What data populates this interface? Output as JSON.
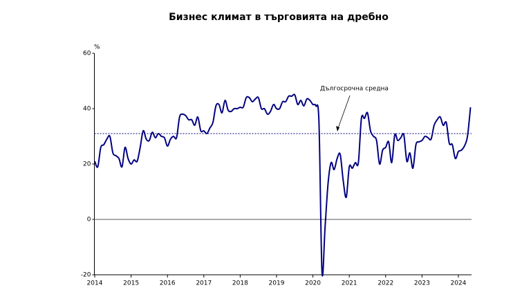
{
  "chart_data": {
    "type": "line",
    "title": "Бизнес климат в търговията на дребно",
    "y_unit": "%",
    "categories": [
      "2014",
      null,
      null,
      null,
      null,
      null,
      null,
      null,
      null,
      null,
      null,
      null,
      "2015",
      null,
      null,
      null,
      null,
      null,
      null,
      null,
      null,
      null,
      null,
      null,
      "2016",
      null,
      null,
      null,
      null,
      null,
      null,
      null,
      null,
      null,
      null,
      null,
      "2017",
      null,
      null,
      null,
      null,
      null,
      null,
      null,
      null,
      null,
      null,
      null,
      "2018",
      null,
      null,
      null,
      null,
      null,
      null,
      null,
      null,
      null,
      null,
      null,
      "2019",
      null,
      null,
      null,
      null,
      null,
      null,
      null,
      null,
      null,
      null,
      null,
      "2020",
      null,
      null,
      null,
      null,
      null,
      null,
      null,
      null,
      null,
      null,
      null,
      "2021",
      null,
      null,
      null,
      null,
      null,
      null,
      null,
      null,
      null,
      null,
      null,
      "2022",
      null,
      null,
      null,
      null,
      null,
      null,
      null,
      null,
      null,
      null,
      null,
      "2023",
      null,
      null,
      null,
      null,
      null,
      null,
      null,
      null,
      null,
      null,
      null,
      "2024",
      null,
      null,
      null,
      null
    ],
    "series": [
      {
        "color": "#000080",
        "values": [
          21,
          19,
          26,
          27,
          29,
          30,
          24,
          23,
          22,
          19,
          26,
          22,
          20,
          21.5,
          21,
          26,
          32,
          29,
          28.5,
          31.5,
          29.5,
          31,
          30,
          29.5,
          26.5,
          29,
          30,
          29.5,
          37,
          38,
          37.5,
          36,
          36,
          34,
          37,
          32,
          32,
          31,
          33,
          35,
          41,
          41.5,
          38.5,
          43,
          39.5,
          39,
          40,
          40,
          40.5,
          40.5,
          44,
          44,
          42.5,
          43.5,
          44,
          40,
          40,
          38,
          39,
          41.5,
          40,
          40,
          42.5,
          42.5,
          44.5,
          44.5,
          45,
          41.5,
          43,
          41,
          43.5,
          43,
          41.5,
          41,
          35,
          -19,
          -3,
          13,
          20.5,
          18,
          22,
          23.5,
          14,
          8,
          19,
          18.5,
          20.5,
          20.5,
          36.5,
          36.5,
          38.5,
          32,
          30,
          28.5,
          20,
          25,
          26,
          28,
          20.5,
          30.5,
          28.5,
          29.5,
          30.5,
          21,
          24,
          18.5,
          27,
          28,
          28.5,
          30,
          29.5,
          29,
          34,
          36,
          37,
          34,
          35,
          27.5,
          27,
          22,
          24.5,
          25,
          26.5,
          30,
          40.5
        ]
      }
    ],
    "average": {
      "label": "Дългосрочна средна",
      "value": 31,
      "color": "#000080"
    },
    "ylim": [
      -20,
      60
    ],
    "yticks": [
      -20,
      0,
      20,
      40,
      60
    ]
  }
}
